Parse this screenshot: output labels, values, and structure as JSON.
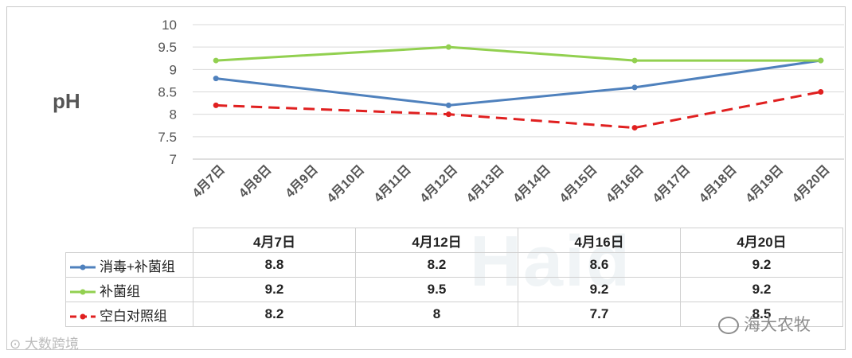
{
  "chart_data": {
    "type": "line",
    "ylabel": "pH",
    "ylim": [
      7,
      10
    ],
    "yticks": [
      "7",
      "7.5",
      "8",
      "8.5",
      "9",
      "9.5",
      "10"
    ],
    "categories": [
      "4月7日",
      "4月8日",
      "4月9日",
      "4月10日",
      "4月11日",
      "4月12日",
      "4月13日",
      "4月14日",
      "4月15日",
      "4月16日",
      "4月17日",
      "4月18日",
      "4月19日",
      "4月20日"
    ],
    "measured_dates": [
      "4月7日",
      "4月12日",
      "4月16日",
      "4月20日"
    ],
    "series": [
      {
        "name": "消毒+补菌组",
        "color": "#4f81bd",
        "dash": "solid",
        "points": [
          {
            "date": "4月7日",
            "value": 8.8
          },
          {
            "date": "4月12日",
            "value": 8.2
          },
          {
            "date": "4月16日",
            "value": 8.6
          },
          {
            "date": "4月20日",
            "value": 9.2
          }
        ]
      },
      {
        "name": "补菌组",
        "color": "#92d050",
        "dash": "solid",
        "points": [
          {
            "date": "4月7日",
            "value": 9.2
          },
          {
            "date": "4月12日",
            "value": 9.5
          },
          {
            "date": "4月16日",
            "value": 9.2
          },
          {
            "date": "4月20日",
            "value": 9.2
          }
        ]
      },
      {
        "name": "空白对照组",
        "color": "#e02020",
        "dash": "dashed",
        "points": [
          {
            "date": "4月7日",
            "value": 8.2
          },
          {
            "date": "4月12日",
            "value": 8
          },
          {
            "date": "4月16日",
            "value": 7.7
          },
          {
            "date": "4月20日",
            "value": 8.5
          }
        ]
      }
    ]
  },
  "table": {
    "headers": [
      "4月7日",
      "4月12日",
      "4月16日",
      "4月20日"
    ],
    "rows": [
      {
        "label": "消毒+补菌组",
        "cells": [
          "8.8",
          "8.2",
          "8.6",
          "9.2"
        ]
      },
      {
        "label": "补菌组",
        "cells": [
          "9.2",
          "9.5",
          "9.2",
          "9.2"
        ]
      },
      {
        "label": "空白对照组",
        "cells": [
          "8.2",
          "8",
          "7.7",
          "8.5"
        ]
      }
    ]
  },
  "watermarks": {
    "left": "大数跨境",
    "right": "海大农牧",
    "center": "Haid"
  }
}
